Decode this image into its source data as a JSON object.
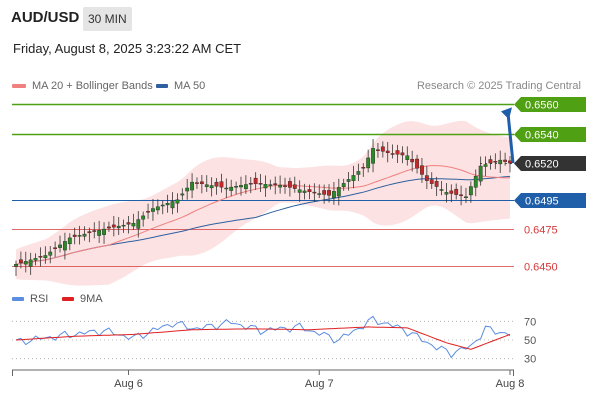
{
  "header": {
    "symbol": "AUD/USD",
    "timeframe": "30 MIN",
    "datetime": "Friday, August 8, 2025 3:23:22 AM CET"
  },
  "legend": {
    "ma20_label": "MA 20 + Bollinger Bands",
    "ma50_label": "MA 50",
    "credit": "Research © 2025 Trading Central"
  },
  "rsi_legend": {
    "rsi_label": "RSI",
    "ma_label": "9MA"
  },
  "colors": {
    "green_level": "#4fa012",
    "blue_level": "#1f5ea8",
    "red_level": "#d53a3a",
    "dark_label": "#333333",
    "ma20": "#f08080",
    "ma50": "#2f5f9f",
    "band_fill": "#fbd8d8",
    "candle_up": "#2a8a2a",
    "candle_down": "#c62828",
    "rsi_line": "#5b8de0",
    "rsi_ma": "#e02020",
    "arrow": "#1f5ea8"
  },
  "chart_data": [
    {
      "type": "candlestick",
      "title": "",
      "ylim": [
        0.6443,
        0.6563
      ],
      "x_ticks": [
        "Aug 6",
        "Aug 7",
        "Aug 8"
      ],
      "levels": [
        {
          "value": 0.656,
          "label": "0.6560",
          "style": "green"
        },
        {
          "value": 0.654,
          "label": "0.6540",
          "style": "green"
        },
        {
          "value": 0.652,
          "label": "0.6520",
          "style": "dark"
        },
        {
          "value": 0.6495,
          "label": "0.6495",
          "style": "blue"
        },
        {
          "value": 0.6475,
          "label": "0.6475",
          "style": "red"
        },
        {
          "value": 0.645,
          "label": "0.6450",
          "style": "red"
        }
      ],
      "current_price": 0.652,
      "key_points": [
        {
          "i": 0,
          "v": 0.6451
        },
        {
          "i": 6,
          "v": 0.6457
        },
        {
          "i": 11,
          "v": 0.6469
        },
        {
          "i": 18,
          "v": 0.6475
        },
        {
          "i": 24,
          "v": 0.6479
        },
        {
          "i": 28,
          "v": 0.6489
        },
        {
          "i": 33,
          "v": 0.6495
        },
        {
          "i": 36,
          "v": 0.6507
        },
        {
          "i": 43,
          "v": 0.6503
        },
        {
          "i": 48,
          "v": 0.6506
        },
        {
          "i": 54,
          "v": 0.6505
        },
        {
          "i": 59,
          "v": 0.6501
        },
        {
          "i": 64,
          "v": 0.6498
        },
        {
          "i": 71,
          "v": 0.6517
        },
        {
          "i": 73,
          "v": 0.653
        },
        {
          "i": 76,
          "v": 0.6527
        },
        {
          "i": 80,
          "v": 0.6525
        },
        {
          "i": 84,
          "v": 0.6508
        },
        {
          "i": 88,
          "v": 0.65
        },
        {
          "i": 92,
          "v": 0.6497
        },
        {
          "i": 95,
          "v": 0.6518
        },
        {
          "i": 99,
          "v": 0.6522
        },
        {
          "i": 101,
          "v": 0.652
        }
      ],
      "candle_count": 102,
      "forecast_arrow": {
        "from": 0.652,
        "to": 0.6558
      }
    },
    {
      "type": "line",
      "title": "",
      "series_labels": [
        "RSI",
        "9MA"
      ],
      "ylim": [
        20,
        80
      ],
      "y_ticks": [
        70,
        50,
        30
      ],
      "rsi_points": [
        {
          "i": 0,
          "v": 48
        },
        {
          "i": 10,
          "v": 55
        },
        {
          "i": 18,
          "v": 60
        },
        {
          "i": 24,
          "v": 52
        },
        {
          "i": 32,
          "v": 68
        },
        {
          "i": 37,
          "v": 62
        },
        {
          "i": 44,
          "v": 69
        },
        {
          "i": 50,
          "v": 60
        },
        {
          "i": 58,
          "v": 64
        },
        {
          "i": 66,
          "v": 50
        },
        {
          "i": 73,
          "v": 72
        },
        {
          "i": 79,
          "v": 62
        },
        {
          "i": 86,
          "v": 42
        },
        {
          "i": 89,
          "v": 36
        },
        {
          "i": 93,
          "v": 43
        },
        {
          "i": 96,
          "v": 62
        },
        {
          "i": 101,
          "v": 56
        }
      ],
      "ma_points": [
        {
          "i": 0,
          "v": 50
        },
        {
          "i": 12,
          "v": 54
        },
        {
          "i": 24,
          "v": 56
        },
        {
          "i": 36,
          "v": 61
        },
        {
          "i": 48,
          "v": 62
        },
        {
          "i": 60,
          "v": 61
        },
        {
          "i": 72,
          "v": 64
        },
        {
          "i": 80,
          "v": 63
        },
        {
          "i": 88,
          "v": 47
        },
        {
          "i": 93,
          "v": 40
        },
        {
          "i": 101,
          "v": 56
        }
      ]
    }
  ]
}
